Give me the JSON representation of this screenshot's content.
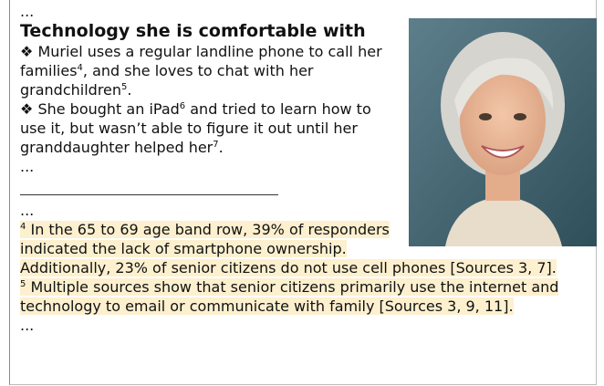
{
  "top_ellipsis": "...",
  "heading": "Technology she is comfortable with",
  "bullets": [
    {
      "marker": "❖",
      "parts": [
        "Muriel uses a regular landline phone to call her families",
        "4",
        ", and she loves to chat with her grandchildren",
        "5",
        "."
      ]
    },
    {
      "marker": "❖",
      "parts": [
        "She bought an iPad",
        "6",
        " and tried to learn how to use it, but wasn’t able to figure it out until her granddaughter helped her",
        "7",
        "."
      ]
    }
  ],
  "middle_ellipsis": "...",
  "footnote_ellipsis": "...",
  "footnotes": [
    {
      "number": "4",
      "text": "In the 65 to 69 age band row, 39% of responders indicated the lack of smartphone ownership. Additionally, 23% of senior citizens do not use cell phones [Sources 3, 7]."
    },
    {
      "number": "5",
      "text": "Multiple sources show that senior citizens primarily use the internet and technology to email or communicate with family [Sources 3, 9, 11]."
    }
  ],
  "end_ellipsis": "..."
}
